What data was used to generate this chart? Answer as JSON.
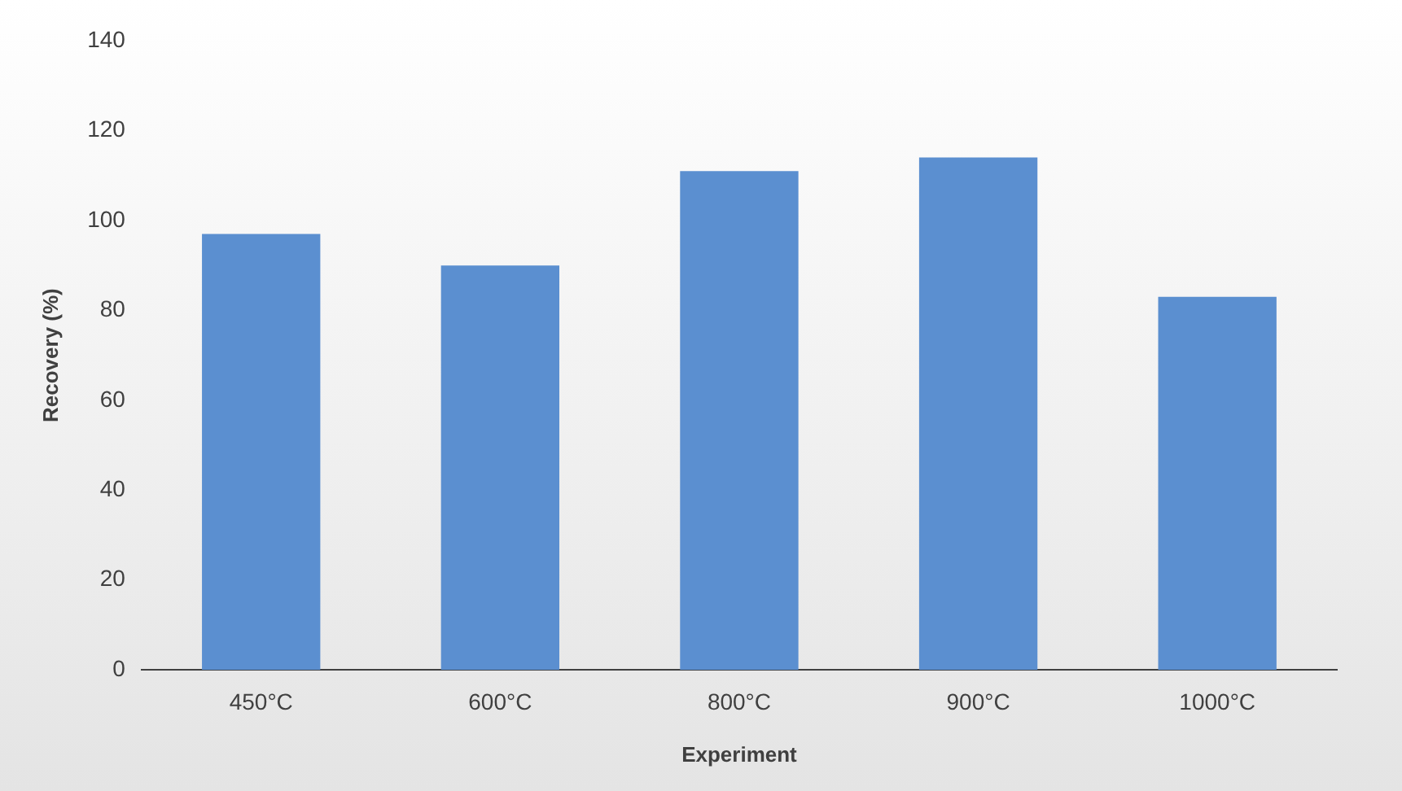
{
  "chart_data": {
    "type": "bar",
    "xlabel": "Experiment",
    "ylabel": "Recovery (%)",
    "categories": [
      "450°C",
      "600°C",
      "800°C",
      "900°C",
      "1000°C"
    ],
    "values": [
      97,
      90,
      111,
      114,
      83
    ],
    "color": "#5b8fd0",
    "ylim": [
      0,
      140
    ],
    "yticks": [
      0,
      20,
      40,
      60,
      80,
      100,
      120,
      140
    ],
    "grid": false,
    "legend": false
  }
}
